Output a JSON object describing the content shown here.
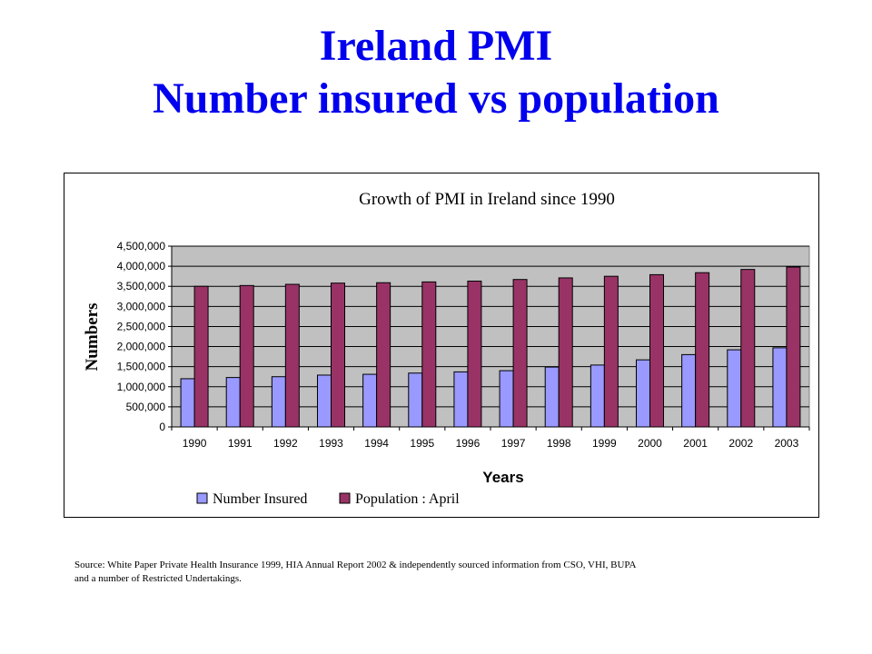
{
  "slide": {
    "title_line1": "Ireland PMI",
    "title_line2": "Number insured vs population",
    "title_color": "#0000ee",
    "source_note": "Source: White Paper Private Health Insurance 1999, HIA Annual Report 2002 & independently sourced information from CSO, VHI, BUPA and a number of Restricted Undertakings."
  },
  "chart_data": {
    "type": "bar",
    "title": "Growth of PMI in Ireland since 1990",
    "xlabel": "Years",
    "ylabel": "Numbers",
    "ylim": [
      0,
      4500000
    ],
    "y_ticks": [
      0,
      500000,
      1000000,
      1500000,
      2000000,
      2500000,
      3000000,
      3500000,
      4000000,
      4500000
    ],
    "y_tick_labels": [
      "0",
      "500,000",
      "1,000,000",
      "1,500,000",
      "2,000,000",
      "2,500,000",
      "3,000,000",
      "3,500,000",
      "4,000,000",
      "4,500,000"
    ],
    "grid": true,
    "legend_position": "bottom",
    "plot_background": "#c0c0c0",
    "categories": [
      "1990",
      "1991",
      "1992",
      "1993",
      "1994",
      "1995",
      "1996",
      "1997",
      "1998",
      "1999",
      "2000",
      "2001",
      "2002",
      "2003"
    ],
    "series": [
      {
        "name": "Number Insured",
        "color": "#9999ff",
        "values": [
          1200000,
          1230000,
          1250000,
          1290000,
          1310000,
          1340000,
          1370000,
          1400000,
          1490000,
          1540000,
          1670000,
          1800000,
          1920000,
          1970000
        ]
      },
      {
        "name": "Population : April",
        "color": "#993366",
        "values": [
          3500000,
          3520000,
          3550000,
          3580000,
          3590000,
          3610000,
          3630000,
          3670000,
          3710000,
          3750000,
          3790000,
          3840000,
          3920000,
          3980000
        ]
      }
    ]
  }
}
